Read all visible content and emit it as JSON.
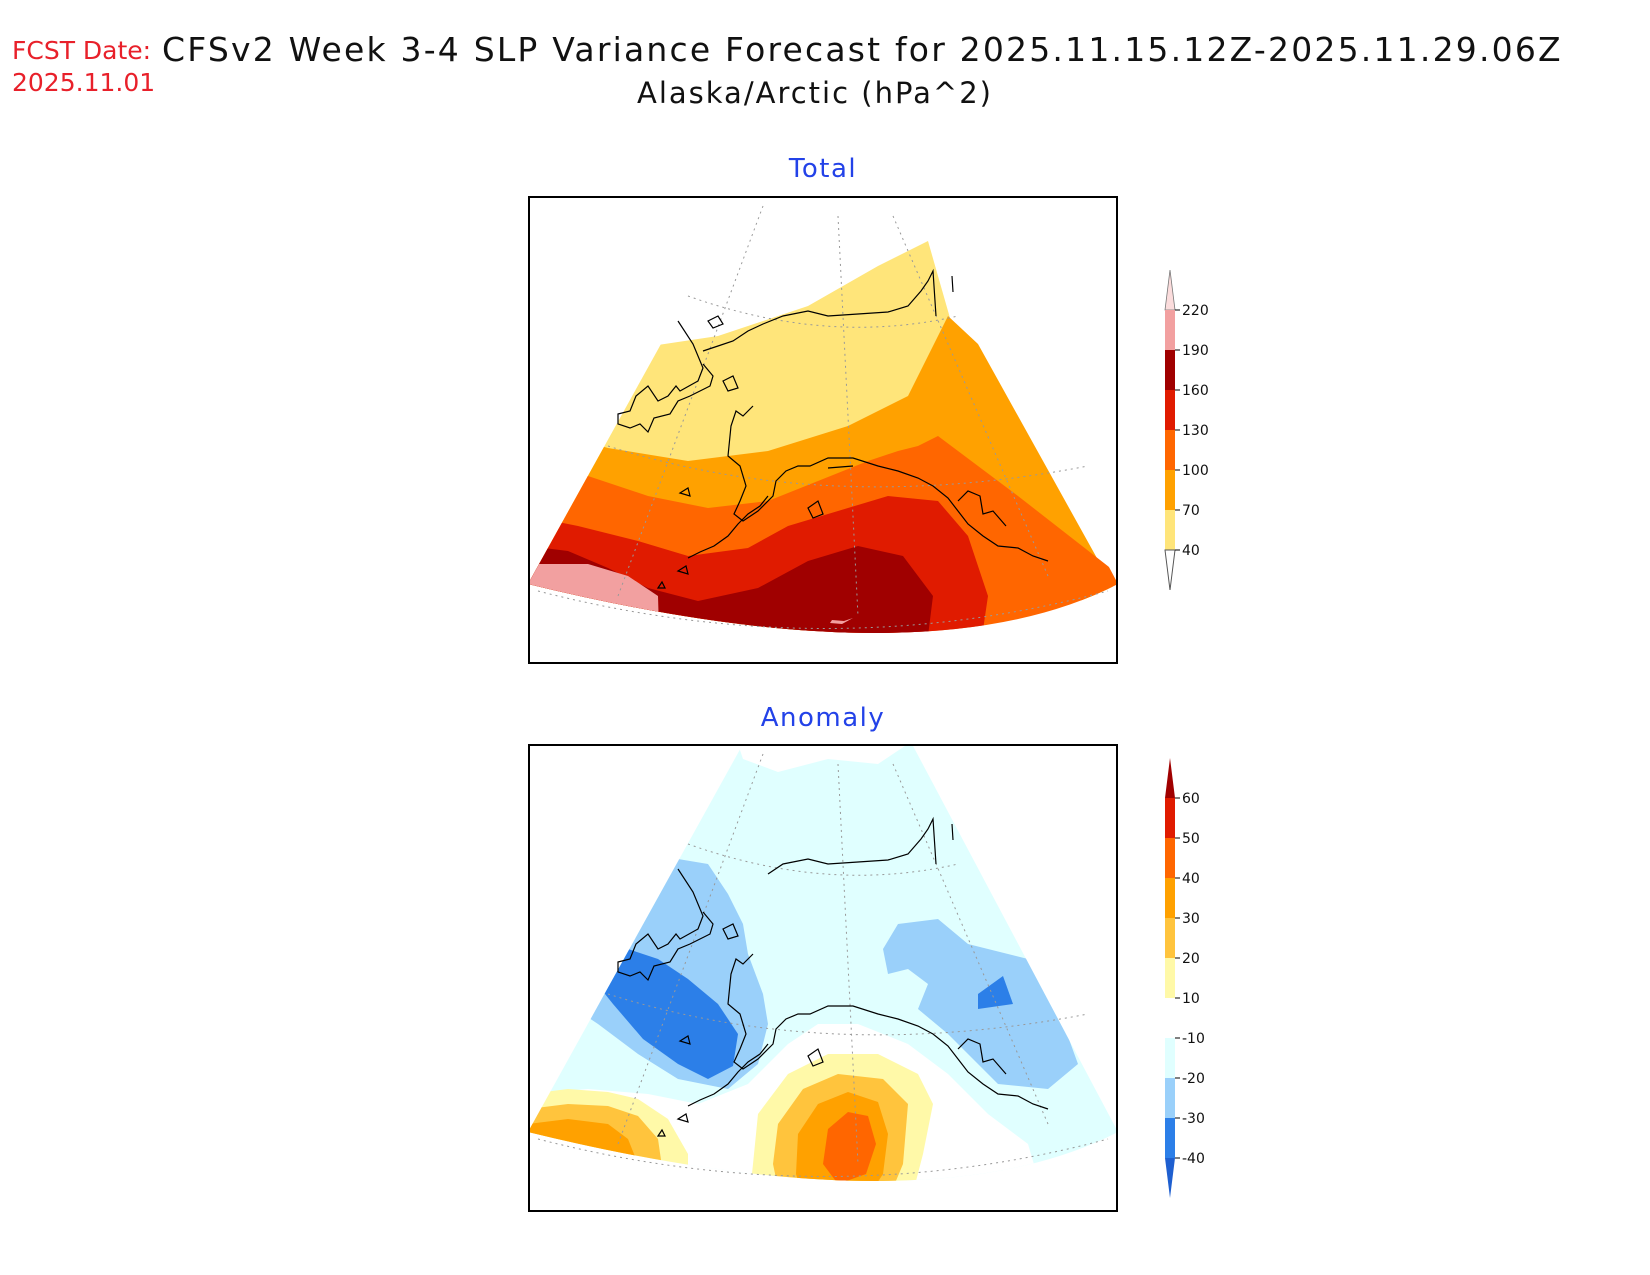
{
  "header": {
    "fcst_label": "FCST Date:",
    "fcst_date": "2025.11.01",
    "title": "CFSv2 Week 3-4 SLP Variance Forecast for 2025.11.15.12Z-2025.11.29.06Z",
    "subtitle": "Alaska/Arctic (hPa^2)"
  },
  "panels": [
    {
      "title": "Total",
      "legend": {
        "labels": [
          "220",
          "190",
          "160",
          "130",
          "100",
          "70",
          "40"
        ],
        "colors": [
          "#fbdcdc",
          "#f2a0a0",
          "#a00000",
          "#e01b00",
          "#ff6600",
          "#ffa100",
          "#ffe57a",
          "#ffffff"
        ]
      }
    },
    {
      "title": "Anomaly",
      "legend": {
        "labels": [
          "60",
          "50",
          "40",
          "30",
          "20",
          "10",
          "-10",
          "-20",
          "-30",
          "-40"
        ],
        "colors": [
          "#a00000",
          "#e01b00",
          "#ff6600",
          "#ffa100",
          "#ffc43d",
          "#fff9a8",
          "#ffffff",
          "#e0ffff",
          "#9ad0fa",
          "#2c7fe8",
          "#1e5fd0"
        ]
      }
    }
  ]
}
